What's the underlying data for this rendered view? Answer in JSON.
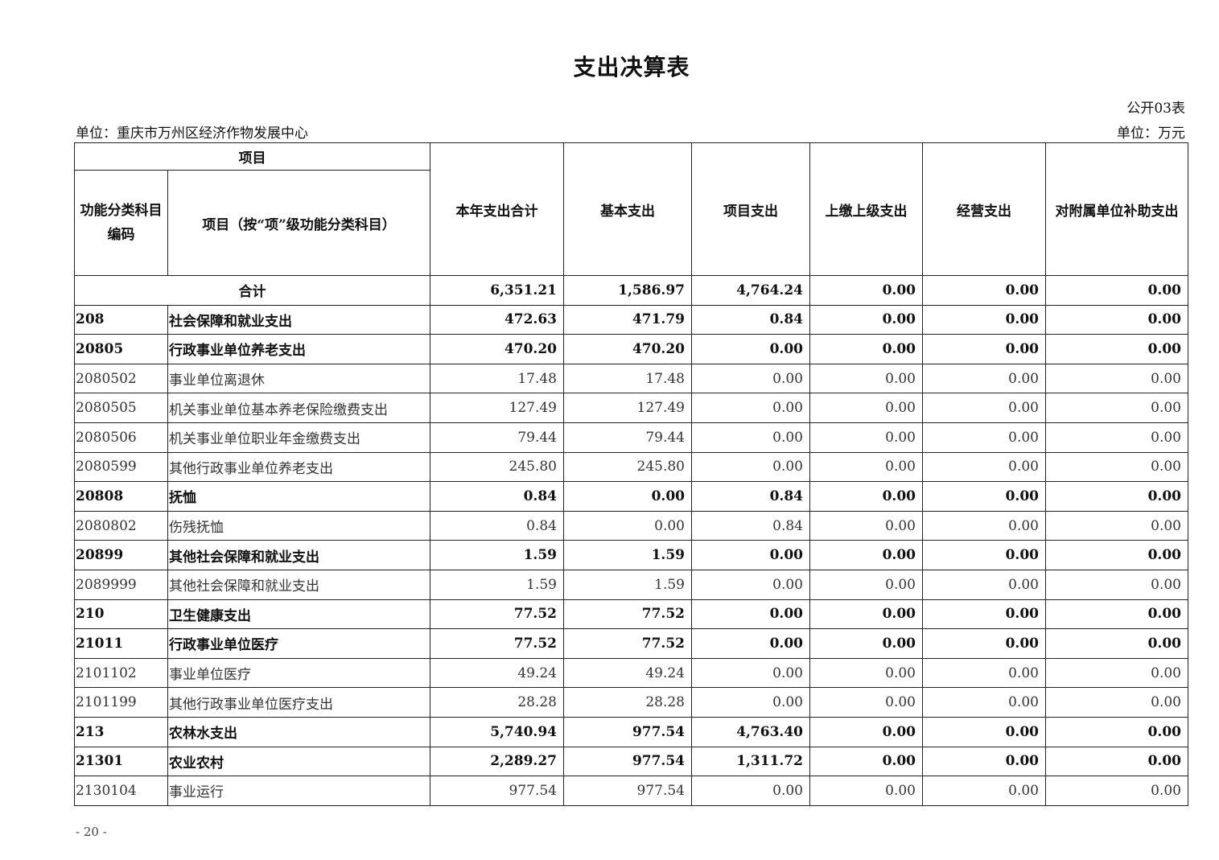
{
  "title": "支出决算表",
  "table_no": "公开03表",
  "unit_org": "单位：重庆市万州区经济作物发展中心",
  "unit_money": "单位：万元",
  "headers": {
    "project": "项目",
    "code": "功能分类科目编码",
    "name": "项目（按“项”级功能分类科目）",
    "total": "本年支出合计",
    "basic": "基本支出",
    "project_exp": "项目支出",
    "upper": "上缴上级支出",
    "business": "经营支出",
    "subsidy": "对附属单位补助支出"
  },
  "total_row": {
    "label": "合计",
    "values": [
      "6,351.21",
      "1,586.97",
      "4,764.24",
      "0.00",
      "0.00",
      "0.00"
    ]
  },
  "rows": [
    {
      "code": "208",
      "name": "社会保障和就业支出",
      "bold": true,
      "values": [
        "472.63",
        "471.79",
        "0.84",
        "0.00",
        "0.00",
        "0.00"
      ]
    },
    {
      "code": "20805",
      "name": "行政事业单位养老支出",
      "bold": true,
      "values": [
        "470.20",
        "470.20",
        "0.00",
        "0.00",
        "0.00",
        "0.00"
      ]
    },
    {
      "code": "2080502",
      "name": "事业单位离退休",
      "bold": false,
      "values": [
        "17.48",
        "17.48",
        "0.00",
        "0.00",
        "0.00",
        "0.00"
      ]
    },
    {
      "code": "2080505",
      "name": "机关事业单位基本养老保险缴费支出",
      "bold": false,
      "values": [
        "127.49",
        "127.49",
        "0.00",
        "0.00",
        "0.00",
        "0.00"
      ]
    },
    {
      "code": "2080506",
      "name": "机关事业单位职业年金缴费支出",
      "bold": false,
      "values": [
        "79.44",
        "79.44",
        "0.00",
        "0.00",
        "0.00",
        "0.00"
      ]
    },
    {
      "code": "2080599",
      "name": "其他行政事业单位养老支出",
      "bold": false,
      "values": [
        "245.80",
        "245.80",
        "0.00",
        "0.00",
        "0.00",
        "0.00"
      ]
    },
    {
      "code": "20808",
      "name": "抚恤",
      "bold": true,
      "values": [
        "0.84",
        "0.00",
        "0.84",
        "0.00",
        "0.00",
        "0.00"
      ]
    },
    {
      "code": "2080802",
      "name": "伤残抚恤",
      "bold": false,
      "values": [
        "0.84",
        "0.00",
        "0.84",
        "0.00",
        "0.00",
        "0.00"
      ]
    },
    {
      "code": "20899",
      "name": "其他社会保障和就业支出",
      "bold": true,
      "values": [
        "1.59",
        "1.59",
        "0.00",
        "0.00",
        "0.00",
        "0.00"
      ]
    },
    {
      "code": "2089999",
      "name": "其他社会保障和就业支出",
      "bold": false,
      "values": [
        "1.59",
        "1.59",
        "0.00",
        "0.00",
        "0.00",
        "0.00"
      ]
    },
    {
      "code": "210",
      "name": "卫生健康支出",
      "bold": true,
      "values": [
        "77.52",
        "77.52",
        "0.00",
        "0.00",
        "0.00",
        "0.00"
      ]
    },
    {
      "code": "21011",
      "name": "行政事业单位医疗",
      "bold": true,
      "values": [
        "77.52",
        "77.52",
        "0.00",
        "0.00",
        "0.00",
        "0.00"
      ]
    },
    {
      "code": "2101102",
      "name": "事业单位医疗",
      "bold": false,
      "values": [
        "49.24",
        "49.24",
        "0.00",
        "0.00",
        "0.00",
        "0.00"
      ]
    },
    {
      "code": "2101199",
      "name": "其他行政事业单位医疗支出",
      "bold": false,
      "values": [
        "28.28",
        "28.28",
        "0.00",
        "0.00",
        "0.00",
        "0.00"
      ]
    },
    {
      "code": "213",
      "name": "农林水支出",
      "bold": true,
      "values": [
        "5,740.94",
        "977.54",
        "4,763.40",
        "0.00",
        "0.00",
        "0.00"
      ]
    },
    {
      "code": "21301",
      "name": "农业农村",
      "bold": true,
      "values": [
        "2,289.27",
        "977.54",
        "1,311.72",
        "0.00",
        "0.00",
        "0.00"
      ]
    },
    {
      "code": "2130104",
      "name": "事业运行",
      "bold": false,
      "values": [
        "977.54",
        "977.54",
        "0.00",
        "0.00",
        "0.00",
        "0.00"
      ]
    }
  ],
  "page_number": "- 20 -"
}
